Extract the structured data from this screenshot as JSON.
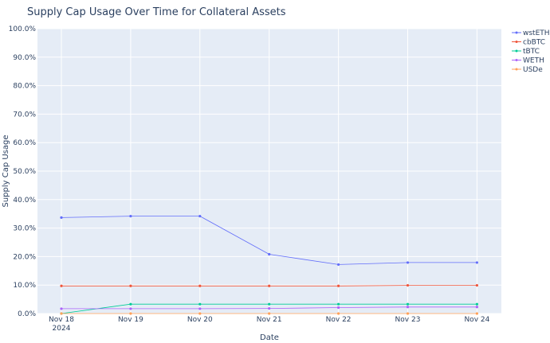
{
  "chart_data": {
    "type": "line",
    "title": "Supply Cap Usage Over Time for Collateral Assets",
    "xlabel": "Date",
    "ylabel": "Supply Cap Usage",
    "x": [
      "2024-11-18",
      "2024-11-19",
      "2024-11-20",
      "2024-11-21",
      "2024-11-22",
      "2024-11-23",
      "2024-11-24"
    ],
    "x_tick_labels": [
      "Nov 18",
      "Nov 19",
      "Nov 20",
      "Nov 21",
      "Nov 22",
      "Nov 23",
      "Nov 24"
    ],
    "x_tick_year": "2024",
    "y_tick_labels": [
      "0.0%",
      "10.0%",
      "20.0%",
      "30.0%",
      "40.0%",
      "50.0%",
      "60.0%",
      "70.0%",
      "80.0%",
      "90.0%",
      "100.0%"
    ],
    "ylim": [
      0,
      100
    ],
    "grid": true,
    "legend_position": "top-right",
    "series": [
      {
        "name": "wstETH",
        "color": "#636efa",
        "values": [
          33.7,
          34.2,
          34.2,
          20.8,
          17.2,
          17.9,
          17.9
        ]
      },
      {
        "name": "cbBTC",
        "color": "#ef553b",
        "values": [
          9.7,
          9.7,
          9.7,
          9.7,
          9.7,
          9.9,
          9.9
        ]
      },
      {
        "name": "tBTC",
        "color": "#00cc96",
        "values": [
          0.0,
          3.3,
          3.3,
          3.3,
          3.3,
          3.3,
          3.3
        ]
      },
      {
        "name": "WETH",
        "color": "#ab63fa",
        "values": [
          1.7,
          1.7,
          1.7,
          1.8,
          2.1,
          2.3,
          2.3
        ]
      },
      {
        "name": "USDe",
        "color": "#ffa15a",
        "values": [
          0.0,
          0.0,
          0.0,
          0.0,
          0.0,
          0.0,
          0.0
        ]
      }
    ]
  }
}
